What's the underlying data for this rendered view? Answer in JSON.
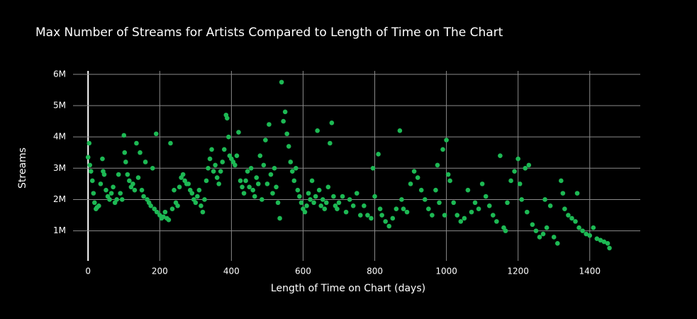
{
  "chart_data": {
    "type": "scatter",
    "title": "Max Number of Streams for Artists Compared to Length of Time on The Chart",
    "x_label": "Length of Time on Chart (days)",
    "y_label": "Streams",
    "color": "#1db954",
    "grid": true,
    "xlim": [
      -42,
      1541
    ],
    "ylim": [
      40000,
      6110000
    ],
    "xticks": [
      0,
      200,
      400,
      600,
      800,
      1000,
      1200,
      1400
    ],
    "yticks": [
      {
        "value": 1000000,
        "label": "1M"
      },
      {
        "value": 2000000,
        "label": "2M"
      },
      {
        "value": 3000000,
        "label": "3M"
      },
      {
        "value": 4000000,
        "label": "4M"
      },
      {
        "value": 5000000,
        "label": "5M"
      },
      {
        "value": 6000000,
        "label": "6M"
      }
    ],
    "x": [
      0,
      3,
      5,
      8,
      12,
      15,
      18,
      22,
      25,
      30,
      35,
      40,
      42,
      45,
      50,
      55,
      60,
      65,
      70,
      75,
      80,
      85,
      90,
      95,
      100,
      102,
      105,
      110,
      115,
      120,
      125,
      130,
      135,
      140,
      145,
      150,
      155,
      160,
      165,
      170,
      175,
      180,
      185,
      190,
      192,
      200,
      205,
      210,
      215,
      220,
      225,
      230,
      235,
      240,
      245,
      250,
      255,
      260,
      265,
      270,
      275,
      280,
      285,
      290,
      295,
      300,
      305,
      310,
      315,
      320,
      325,
      330,
      335,
      340,
      345,
      350,
      355,
      360,
      365,
      370,
      375,
      380,
      385,
      388,
      392,
      395,
      400,
      405,
      410,
      415,
      420,
      425,
      430,
      435,
      440,
      445,
      450,
      455,
      460,
      465,
      470,
      475,
      480,
      485,
      490,
      495,
      500,
      505,
      510,
      515,
      520,
      525,
      530,
      535,
      540,
      545,
      550,
      555,
      560,
      565,
      570,
      575,
      580,
      585,
      590,
      595,
      600,
      605,
      610,
      615,
      620,
      625,
      630,
      635,
      640,
      645,
      650,
      655,
      660,
      665,
      670,
      675,
      680,
      685,
      690,
      695,
      700,
      710,
      720,
      730,
      740,
      750,
      760,
      770,
      780,
      790,
      795,
      800,
      810,
      815,
      820,
      830,
      840,
      850,
      860,
      870,
      875,
      880,
      890,
      900,
      910,
      920,
      930,
      940,
      950,
      960,
      970,
      975,
      980,
      990,
      995,
      1000,
      1005,
      1010,
      1020,
      1030,
      1040,
      1050,
      1060,
      1070,
      1080,
      1090,
      1100,
      1110,
      1120,
      1130,
      1140,
      1150,
      1160,
      1165,
      1170,
      1180,
      1190,
      1200,
      1205,
      1210,
      1220,
      1225,
      1230,
      1240,
      1250,
      1260,
      1270,
      1275,
      1280,
      1290,
      1300,
      1310,
      1320,
      1325,
      1330,
      1340,
      1350,
      1360,
      1365,
      1370,
      1380,
      1390,
      1400,
      1410,
      1420,
      1430,
      1440,
      1450,
      1455
    ],
    "values": [
      3350000,
      3800000,
      3100000,
      2900000,
      2600000,
      2200000,
      1900000,
      1700000,
      1750000,
      1800000,
      2500000,
      3300000,
      2900000,
      2800000,
      2300000,
      2100000,
      2000000,
      2200000,
      2400000,
      1900000,
      2000000,
      2800000,
      2200000,
      2000000,
      4050000,
      3500000,
      3200000,
      2800000,
      2600000,
      2400000,
      2500000,
      2300000,
      3800000,
      2700000,
      3500000,
      2300000,
      2100000,
      3200000,
      2000000,
      1900000,
      1800000,
      3000000,
      1700000,
      4100000,
      1600000,
      1500000,
      1400000,
      1450000,
      1600000,
      1400000,
      1350000,
      3800000,
      1700000,
      2300000,
      1900000,
      1800000,
      2400000,
      2700000,
      2800000,
      2600000,
      2500000,
      2500000,
      2300000,
      2200000,
      2000000,
      1900000,
      2100000,
      2300000,
      1800000,
      1600000,
      2000000,
      2600000,
      3000000,
      3300000,
      3600000,
      2900000,
      3100000,
      2700000,
      2500000,
      2900000,
      3200000,
      3600000,
      4700000,
      4600000,
      4000000,
      3400000,
      3300000,
      3200000,
      3100000,
      3400000,
      4150000,
      2600000,
      2400000,
      2200000,
      2600000,
      2900000,
      2400000,
      3000000,
      2300000,
      2100000,
      2700000,
      2500000,
      3400000,
      2000000,
      3100000,
      3900000,
      2500000,
      4400000,
      2800000,
      2200000,
      3000000,
      2400000,
      1900000,
      1400000,
      5750000,
      4500000,
      4800000,
      4100000,
      3700000,
      3200000,
      2900000,
      2600000,
      3000000,
      2300000,
      2100000,
      1900000,
      1700000,
      1600000,
      1800000,
      2200000,
      2000000,
      2600000,
      1900000,
      2100000,
      4200000,
      2300000,
      1800000,
      2000000,
      1700000,
      1900000,
      2400000,
      3800000,
      4450000,
      2100000,
      1800000,
      1700000,
      1900000,
      2100000,
      1600000,
      2000000,
      1800000,
      2200000,
      1500000,
      1800000,
      1500000,
      1400000,
      3000000,
      2100000,
      3450000,
      1700000,
      1500000,
      1300000,
      1150000,
      1400000,
      1700000,
      4200000,
      2000000,
      1700000,
      1600000,
      2500000,
      2900000,
      2700000,
      2300000,
      2000000,
      1700000,
      1500000,
      2300000,
      3100000,
      1900000,
      3600000,
      1500000,
      3900000,
      2800000,
      2600000,
      1900000,
      1500000,
      1300000,
      1400000,
      2300000,
      1600000,
      1900000,
      1700000,
      2500000,
      2100000,
      1800000,
      1500000,
      1300000,
      3400000,
      1100000,
      1000000,
      1900000,
      2600000,
      2900000,
      3300000,
      2500000,
      2000000,
      3000000,
      1600000,
      3100000,
      1200000,
      1000000,
      800000,
      900000,
      2000000,
      1100000,
      1800000,
      800000,
      600000,
      2600000,
      2200000,
      1700000,
      1500000,
      1400000,
      1300000,
      2200000,
      1100000,
      1000000,
      900000,
      850000,
      1100000,
      750000,
      700000,
      650000,
      600000,
      450000
    ]
  }
}
